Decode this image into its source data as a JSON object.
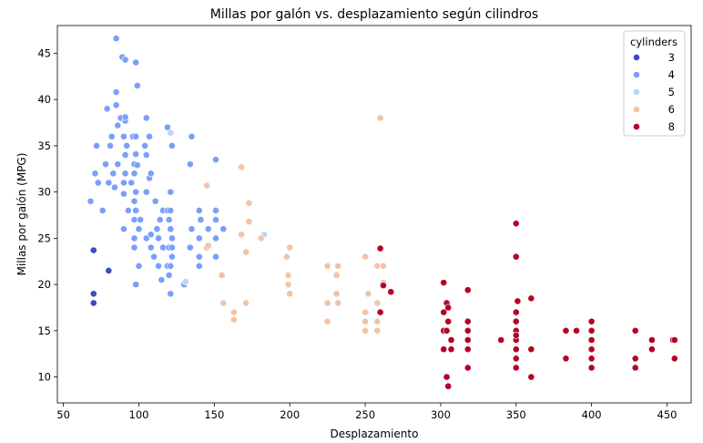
{
  "chart_data": {
    "type": "scatter",
    "title": "Millas por galón vs. desplazamiento según cilindros",
    "xlabel": "Desplazamiento",
    "ylabel": "Millas por galón (MPG)",
    "xlim": [
      46,
      466
    ],
    "ylim": [
      7.2,
      48
    ],
    "xticks": [
      50,
      100,
      150,
      200,
      250,
      300,
      350,
      400,
      450
    ],
    "yticks": [
      10,
      15,
      20,
      25,
      30,
      35,
      40,
      45
    ],
    "grid": false,
    "legend": {
      "title": "cylinders",
      "placement": "top-right"
    },
    "series": [
      {
        "name": "3",
        "color": "#3b4cc0",
        "points": [
          [
            70,
            23.7
          ],
          [
            70,
            19
          ],
          [
            70,
            18
          ],
          [
            80,
            21.5
          ]
        ]
      },
      {
        "name": "4",
        "color": "#7b9ff9",
        "points": [
          [
            68,
            29
          ],
          [
            71,
            32
          ],
          [
            72,
            35
          ],
          [
            73,
            31
          ],
          [
            76,
            28
          ],
          [
            78,
            33
          ],
          [
            79,
            39
          ],
          [
            80,
            31
          ],
          [
            81,
            35
          ],
          [
            82,
            36
          ],
          [
            83,
            32
          ],
          [
            84,
            30.5
          ],
          [
            85,
            46.6
          ],
          [
            85,
            40.8
          ],
          [
            85,
            39.4
          ],
          [
            86,
            37.2
          ],
          [
            86,
            33
          ],
          [
            88,
            38
          ],
          [
            89,
            44.6
          ],
          [
            90,
            36
          ],
          [
            90,
            31
          ],
          [
            90,
            29.8
          ],
          [
            90,
            26
          ],
          [
            91,
            34
          ],
          [
            91,
            32
          ],
          [
            91,
            37.7
          ],
          [
            91,
            44.3
          ],
          [
            91,
            38.1
          ],
          [
            92,
            35
          ],
          [
            93,
            28
          ],
          [
            95,
            31
          ],
          [
            96,
            36
          ],
          [
            97,
            32
          ],
          [
            97,
            29
          ],
          [
            97,
            27
          ],
          [
            97,
            24
          ],
          [
            97,
            25
          ],
          [
            97,
            33
          ],
          [
            98,
            36
          ],
          [
            98,
            30
          ],
          [
            98,
            28
          ],
          [
            98,
            34.1
          ],
          [
            98,
            20
          ],
          [
            98,
            44
          ],
          [
            99,
            41.5
          ],
          [
            99,
            32.9
          ],
          [
            100,
            26
          ],
          [
            100,
            22
          ],
          [
            101,
            27
          ],
          [
            104,
            35
          ],
          [
            105,
            38
          ],
          [
            105,
            34
          ],
          [
            105,
            30
          ],
          [
            105,
            25
          ],
          [
            107,
            31.5
          ],
          [
            107,
            36
          ],
          [
            108,
            24
          ],
          [
            108,
            32
          ],
          [
            108,
            25.4
          ],
          [
            110,
            23
          ],
          [
            111,
            29
          ],
          [
            112,
            26
          ],
          [
            113,
            25
          ],
          [
            113,
            22
          ],
          [
            114,
            27
          ],
          [
            115,
            20.5
          ],
          [
            116,
            28
          ],
          [
            116,
            24
          ],
          [
            119,
            22
          ],
          [
            119,
            28
          ],
          [
            119,
            37
          ],
          [
            120,
            27
          ],
          [
            120,
            24
          ],
          [
            120,
            21
          ],
          [
            121,
            19
          ],
          [
            121,
            26
          ],
          [
            121,
            22
          ],
          [
            121,
            30
          ],
          [
            121,
            28
          ],
          [
            122,
            24
          ],
          [
            122,
            35
          ],
          [
            122,
            25
          ],
          [
            122,
            23
          ],
          [
            130,
            20
          ],
          [
            134,
            33
          ],
          [
            134,
            24
          ],
          [
            135,
            26
          ],
          [
            135,
            36
          ],
          [
            140,
            25
          ],
          [
            140,
            23
          ],
          [
            140,
            28
          ],
          [
            140,
            22
          ],
          [
            141,
            27
          ],
          [
            146,
            26
          ],
          [
            151,
            33.5
          ],
          [
            151,
            28
          ],
          [
            151,
            25
          ],
          [
            151,
            27
          ],
          [
            151,
            23
          ],
          [
            156,
            26
          ]
        ]
      },
      {
        "name": "5",
        "color": "#c0d4f5",
        "points": [
          [
            121,
            36.4
          ],
          [
            131,
            20.3
          ],
          [
            183,
            25.4
          ]
        ]
      },
      {
        "name": "6",
        "color": "#f2c3a7",
        "points": [
          [
            145,
            24
          ],
          [
            145,
            30.7
          ],
          [
            146,
            24.2
          ],
          [
            155,
            21
          ],
          [
            156,
            18
          ],
          [
            163,
            17
          ],
          [
            163,
            16.2
          ],
          [
            168,
            32.7
          ],
          [
            168,
            25.4
          ],
          [
            171,
            23.5
          ],
          [
            171,
            18
          ],
          [
            173,
            28.8
          ],
          [
            173,
            26.8
          ],
          [
            181,
            25
          ],
          [
            198,
            23
          ],
          [
            199,
            21
          ],
          [
            199,
            20
          ],
          [
            200,
            24
          ],
          [
            200,
            19
          ],
          [
            225,
            22
          ],
          [
            225,
            18
          ],
          [
            225,
            16
          ],
          [
            231,
            21
          ],
          [
            231,
            19
          ],
          [
            232,
            22
          ],
          [
            232,
            18
          ],
          [
            250,
            23
          ],
          [
            250,
            17
          ],
          [
            250,
            16
          ],
          [
            250,
            15
          ],
          [
            252,
            19
          ],
          [
            258,
            22
          ],
          [
            258,
            18
          ],
          [
            258,
            16
          ],
          [
            258,
            15
          ],
          [
            260,
            38
          ],
          [
            262,
            20.2
          ],
          [
            262,
            22
          ]
        ]
      },
      {
        "name": "8",
        "color": "#b40426",
        "points": [
          [
            260,
            23.9
          ],
          [
            260,
            17
          ],
          [
            262,
            19.9
          ],
          [
            267,
            19.2
          ],
          [
            302,
            20.2
          ],
          [
            302,
            17
          ],
          [
            302,
            15
          ],
          [
            302,
            13
          ],
          [
            304,
            18
          ],
          [
            304,
            15
          ],
          [
            305,
            17.5
          ],
          [
            305,
            16
          ],
          [
            305,
            9
          ],
          [
            307,
            14
          ],
          [
            318,
            19.4
          ],
          [
            318,
            16
          ],
          [
            318,
            15
          ],
          [
            318,
            14
          ],
          [
            318,
            13
          ],
          [
            318,
            11
          ],
          [
            340,
            14
          ],
          [
            350,
            26.6
          ],
          [
            350,
            23
          ],
          [
            350,
            17
          ],
          [
            350,
            16
          ],
          [
            350,
            15
          ],
          [
            350,
            14
          ],
          [
            350,
            13
          ],
          [
            350,
            12
          ],
          [
            350,
            11
          ],
          [
            351,
            18.2
          ],
          [
            360,
            18.5
          ],
          [
            360,
            13
          ],
          [
            360,
            10
          ],
          [
            383,
            15
          ],
          [
            383,
            12
          ],
          [
            390,
            15
          ],
          [
            400,
            16
          ],
          [
            400,
            15
          ],
          [
            400,
            14
          ],
          [
            400,
            13
          ],
          [
            400,
            12
          ],
          [
            400,
            11
          ],
          [
            429,
            15
          ],
          [
            429,
            12
          ],
          [
            429,
            11
          ],
          [
            440,
            14
          ],
          [
            440,
            13
          ],
          [
            454,
            14
          ],
          [
            455,
            14
          ],
          [
            455,
            12
          ],
          [
            304,
            10
          ],
          [
            307,
            13
          ],
          [
            350,
            14.5
          ]
        ]
      }
    ]
  }
}
